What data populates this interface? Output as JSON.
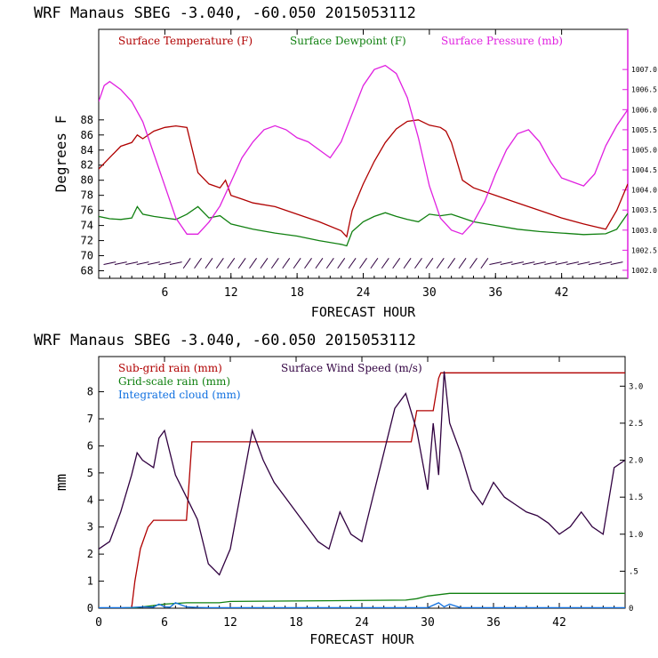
{
  "colors": {
    "temperature": "#b00000",
    "dewpoint": "#108010",
    "pressure": "#e020e0",
    "wind": "#300040",
    "subgrid": "#b00000",
    "gridscale": "#108010",
    "cloud": "#1070e0",
    "axis": "#000000"
  },
  "chart_data": [
    {
      "type": "line",
      "title": "WRF   Manaus SBEG   -3.040, -60.050  2015053112",
      "xlabel": "FORECAST HOUR",
      "ylabel": "Degrees F",
      "xlim": [
        0,
        48
      ],
      "ylim": [
        67,
        100
      ],
      "ylim_right": [
        1001.8,
        1008.0
      ],
      "x_ticks": [
        "6",
        "12",
        "18",
        "24",
        "30",
        "36",
        "42"
      ],
      "y_ticks": [
        "68",
        "70",
        "72",
        "74",
        "76",
        "78",
        "80",
        "82",
        "84",
        "86",
        "88"
      ],
      "y_right_ticks": [
        "1002.0",
        "1002.5",
        "1003.0",
        "1003.5",
        "1004.0",
        "1004.5",
        "1005.0",
        "1005.5",
        "1006.0",
        "1006.5",
        "1007.0"
      ],
      "legend": [
        "Surface Temperature (F)",
        "Surface Dewpoint (F)",
        "Surface Pressure (mb)"
      ],
      "wind_barbs": "row of wind barbs along the bottom at about 69 F",
      "series": [
        {
          "name": "Surface Temperature (F)",
          "axis": "left",
          "x": [
            0,
            1,
            2,
            3,
            3.5,
            4,
            5,
            6,
            7,
            8,
            8.5,
            9,
            10,
            11,
            11.5,
            12,
            13,
            14,
            16,
            18,
            20,
            22,
            22.5,
            23,
            24,
            25,
            26,
            27,
            28,
            29,
            30,
            31,
            31.5,
            32,
            33,
            34,
            36,
            38,
            40,
            42,
            44,
            46,
            47,
            48
          ],
          "y": [
            81.5,
            83,
            84.5,
            85,
            86,
            85.5,
            86.5,
            87,
            87.2,
            87,
            84,
            81,
            79.5,
            79,
            80,
            78,
            77.5,
            77,
            76.5,
            75.5,
            74.5,
            73.3,
            72.5,
            76,
            79.5,
            82.5,
            85,
            86.8,
            87.8,
            88,
            87.3,
            87,
            86.5,
            85,
            80,
            79,
            78,
            77,
            76,
            75,
            74.2,
            73.5,
            76,
            79.5
          ]
        },
        {
          "name": "Surface Dewpoint (F)",
          "axis": "left",
          "x": [
            0,
            1,
            2,
            3,
            3.5,
            4,
            5,
            6,
            7,
            8,
            9,
            10,
            11,
            12,
            14,
            16,
            18,
            20,
            22,
            22.5,
            23,
            24,
            25,
            26,
            27,
            28,
            29,
            30,
            31,
            32,
            33,
            34,
            36,
            38,
            40,
            42,
            44,
            46,
            47,
            48
          ],
          "y": [
            75.2,
            74.9,
            74.8,
            75,
            76.5,
            75.5,
            75.2,
            75,
            74.8,
            75.5,
            76.5,
            75,
            75.3,
            74.2,
            73.5,
            73,
            72.6,
            72,
            71.5,
            71.3,
            73.2,
            74.5,
            75.2,
            75.7,
            75.2,
            74.8,
            74.5,
            75.5,
            75.3,
            75.5,
            75,
            74.5,
            74,
            73.5,
            73.2,
            73,
            72.8,
            72.9,
            73.5,
            75.6
          ]
        },
        {
          "name": "Surface Pressure (mb)",
          "axis": "right",
          "x": [
            0,
            0.5,
            1,
            2,
            3,
            4,
            5,
            6,
            7,
            8,
            9,
            10,
            11,
            12,
            13,
            14,
            15,
            16,
            17,
            18,
            19,
            20,
            21,
            22,
            23,
            24,
            25,
            26,
            27,
            28,
            29,
            30,
            31,
            32,
            33,
            34,
            35,
            36,
            37,
            38,
            39,
            40,
            41,
            42,
            43,
            44,
            45,
            46,
            47,
            48
          ],
          "y": [
            1006.2,
            1006.6,
            1006.7,
            1006.5,
            1006.2,
            1005.7,
            1004.9,
            1004.1,
            1003.3,
            1002.9,
            1002.9,
            1003.2,
            1003.6,
            1004.2,
            1004.8,
            1005.2,
            1005.5,
            1005.6,
            1005.5,
            1005.3,
            1005.2,
            1005.0,
            1004.8,
            1005.2,
            1005.9,
            1006.6,
            1007.0,
            1007.1,
            1006.9,
            1006.3,
            1005.3,
            1004.1,
            1003.3,
            1003.0,
            1002.9,
            1003.2,
            1003.7,
            1004.4,
            1005.0,
            1005.4,
            1005.5,
            1005.2,
            1004.7,
            1004.3,
            1004.2,
            1004.1,
            1004.4,
            1005.1,
            1005.6,
            1006.0
          ]
        }
      ]
    },
    {
      "type": "line",
      "title": "WRF   Manaus SBEG   -3.040, -60.050  2015053112",
      "xlabel": "FORECAST HOUR",
      "ylabel": "mm",
      "xlim": [
        0,
        48
      ],
      "ylim": [
        0,
        9.3
      ],
      "ylim_right": [
        0,
        3.4
      ],
      "x_ticks": [
        "0",
        "6",
        "12",
        "18",
        "24",
        "30",
        "36",
        "42"
      ],
      "y_ticks": [
        "0",
        "1",
        "2",
        "3",
        "4",
        "5",
        "6",
        "7",
        "8"
      ],
      "y_right_ticks": [
        "0",
        ".5",
        "1.0",
        "1.5",
        "2.0",
        "2.5",
        "3.0"
      ],
      "legend": [
        "Sub-grid rain (mm)",
        "Surface Wind Speed (m/s)",
        "Grid-scale rain (mm)",
        "Integrated cloud (mm)"
      ],
      "series": [
        {
          "name": "Sub-grid rain (mm)",
          "axis": "left",
          "x": [
            0,
            3,
            3.3,
            3.8,
            4.5,
            5,
            8,
            8.3,
            8.5,
            28.5,
            29,
            30.5,
            31,
            31.2,
            48
          ],
          "y": [
            0,
            0,
            1,
            2.2,
            3,
            3.25,
            3.25,
            5,
            6.15,
            6.15,
            7.3,
            7.3,
            8.5,
            8.7,
            8.7
          ]
        },
        {
          "name": "Surface Wind Speed (m/s)",
          "axis": "right",
          "x": [
            0,
            1,
            2,
            3,
            3.5,
            4,
            5,
            5.5,
            6,
            7,
            8,
            9,
            10,
            11,
            12,
            13,
            14,
            15,
            16,
            17,
            18,
            19,
            20,
            21,
            22,
            23,
            24,
            25,
            26,
            27,
            28,
            29,
            30,
            30.5,
            31,
            31.5,
            32,
            33,
            34,
            35,
            36,
            37,
            38,
            39,
            40,
            41,
            42,
            43,
            44,
            45,
            46,
            47,
            48
          ],
          "y": [
            0.8,
            0.9,
            1.3,
            1.8,
            2.1,
            2.0,
            1.9,
            2.3,
            2.4,
            1.8,
            1.5,
            1.2,
            0.6,
            0.45,
            0.8,
            1.6,
            2.4,
            2.0,
            1.7,
            1.5,
            1.3,
            1.1,
            0.9,
            0.8,
            1.3,
            1.0,
            0.9,
            1.5,
            2.1,
            2.7,
            2.9,
            2.4,
            1.6,
            2.5,
            1.8,
            3.2,
            2.5,
            2.1,
            1.6,
            1.4,
            1.7,
            1.5,
            1.4,
            1.3,
            1.25,
            1.15,
            1.0,
            1.1,
            1.3,
            1.1,
            1.0,
            1.9,
            2.0
          ]
        },
        {
          "name": "Grid-scale rain (mm)",
          "axis": "left",
          "x": [
            0,
            3,
            4,
            5,
            6,
            8,
            11,
            12,
            28,
            29,
            30,
            32,
            48
          ],
          "y": [
            0,
            0,
            0.05,
            0.1,
            0.15,
            0.2,
            0.2,
            0.25,
            0.3,
            0.35,
            0.45,
            0.55,
            0.55
          ]
        },
        {
          "name": "Integrated cloud (mm)",
          "axis": "left",
          "x": [
            0,
            1,
            2,
            3,
            4,
            5,
            5.5,
            6,
            6.5,
            7,
            8,
            9,
            10,
            20,
            30,
            31,
            31.5,
            32,
            33,
            48
          ],
          "y": [
            0.02,
            0.02,
            0.02,
            0.03,
            0.05,
            0.04,
            0.15,
            0.05,
            0.04,
            0.2,
            0.05,
            0.03,
            0.02,
            0.02,
            0.02,
            0.2,
            0.05,
            0.15,
            0.02,
            0.02
          ]
        }
      ]
    }
  ]
}
